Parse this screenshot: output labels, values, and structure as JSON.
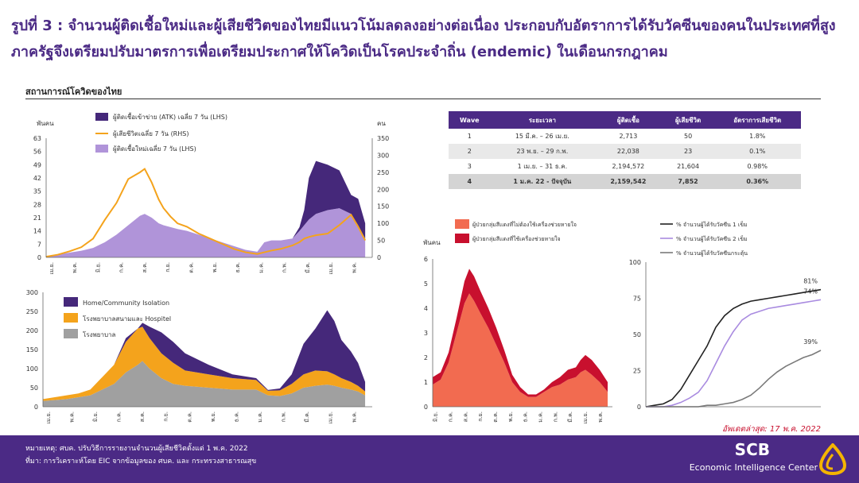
{
  "title": "รูปที่ 3 : จำนวนผู้ติดเชื้อใหม่และผู้เสียชีวิตของไทยมีแนวโน้มลดลงอย่างต่อเนื่อง ประกอบกับอัตราการได้รับวัคซีนของคนในประเทศที่สูง ภาครัฐจึงเตรียมปรับมาตรการเพื่อเตรียมประกาศให้โควิดเป็นโรคประจำถิ่น (endemic) ในเดือนกรกฎาคม",
  "section_title": "สถานการณ์โควิดของไทย",
  "update_text": "อัพเดตล่าสุด: 17 พ.ค. 2022",
  "footer": {
    "note": "หมายเหตุ: ศบค. ปรับวิธีการรายงานจำนวนผู้เสียชีวิตตั้งแต่ 1 พ.ค. 2022",
    "source": "ที่มา: การวิเคราะห์โดย EIC จากข้อมูลของ ศบค. และ กระทรวงสาธารณสุข",
    "brand": "SCB",
    "brand_sub": "Economic Intelligence Center"
  },
  "colors": {
    "purple": "#4b2a85",
    "dark_purple": "#45287a",
    "light_purple": "#b094d9",
    "orange": "#f4a31c",
    "gray": "#a0a0a0",
    "coral": "#f26b50",
    "crimson": "#c8102e",
    "lavender": "#a98be0",
    "dark_gray": "#7a7a7a"
  },
  "wave_table": {
    "headers": [
      "Wave",
      "ระยะเวลา",
      "ผู้ติดเชื้อ",
      "ผู้เสียชีวิต",
      "อัตราการเสียชีวิต"
    ],
    "rows": [
      [
        "1",
        "15 มี.ค. – 26 เม.ย.",
        "2,713",
        "50",
        "1.8%"
      ],
      [
        "2",
        "23 พ.ย. – 29 ก.พ.",
        "22,038",
        "23",
        "0.1%"
      ],
      [
        "3",
        "1 เม.ย. – 31 ธ.ค.",
        "2,194,572",
        "21,604",
        "0.98%"
      ],
      [
        "4",
        "1 ม.ค. 22 - ปัจจุบัน",
        "2,159,542",
        "7,852",
        "0.36%"
      ]
    ]
  },
  "chart_data": [
    {
      "type": "area",
      "id": "cases_deaths",
      "ylabel": "พันคน",
      "ylabel_right": "คน",
      "ylim": [
        0,
        63
      ],
      "y_ticks": [
        0,
        7,
        14,
        21,
        28,
        35,
        42,
        49,
        56,
        63
      ],
      "ylim_right": [
        0,
        350
      ],
      "y_ticks_right": [
        0,
        50,
        100,
        150,
        200,
        250,
        300,
        350
      ],
      "x_ticks": [
        "เม.ย.",
        "พ.ค.",
        "มิ.ย.",
        "ก.ค.",
        "ส.ค.",
        "ก.ย.",
        "ต.ค.",
        "พ.ย.",
        "ธ.ค.",
        "ม.ค.",
        "ก.พ.",
        "มี.ค.",
        "เม.ย.",
        "พ.ค."
      ],
      "legend": [
        "ผู้ติดเชื้อเข้าข่าย (ATK) เฉลี่ย 7 วัน (LHS)",
        "ผู้เสียชีวิตเฉลี่ย 7 วัน (RHS)",
        "ผู้ติดเชื้อใหม่เฉลี่ย 7 วัน (LHS)"
      ],
      "x": [
        0,
        0.5,
        1,
        1.5,
        2,
        2.5,
        3,
        3.5,
        4,
        4.2,
        4.5,
        4.8,
        5,
        5.3,
        5.6,
        6,
        6.5,
        7,
        7.5,
        8,
        8.5,
        9,
        9.3,
        9.6,
        10,
        10.5,
        10.8,
        11,
        11.2,
        11.5,
        12,
        12.5,
        13,
        13.3,
        13.6
      ],
      "series": [
        {
          "name": "ผู้ติดเชื้อใหม่เฉลี่ย 7 วัน (LHS)",
          "values": [
            0.5,
            1.5,
            2.5,
            3.5,
            5,
            8,
            12,
            17,
            22,
            23,
            21,
            18,
            17,
            16,
            15,
            14,
            12,
            10,
            8,
            6,
            4,
            3,
            8,
            9,
            9,
            10,
            14,
            17,
            20,
            23,
            25,
            26,
            23,
            17,
            10
          ]
        },
        {
          "name": "ผู้ติดเชื้อเข้าข่าย (ATK) เฉลี่ย 7 วัน (LHS)",
          "values": [
            0,
            0,
            0,
            0,
            0,
            0,
            0,
            0,
            0,
            0,
            0,
            0,
            0,
            0,
            0,
            0,
            0,
            0,
            0,
            0,
            0,
            0,
            0,
            0,
            0,
            0,
            2,
            8,
            22,
            28,
            24,
            20,
            10,
            14,
            8
          ]
        },
        {
          "name": "ผู้เสียชีวิตเฉลี่ย 7 วัน (RHS)",
          "values": [
            2,
            8,
            18,
            30,
            55,
            110,
            160,
            230,
            250,
            260,
            220,
            170,
            145,
            120,
            100,
            90,
            70,
            55,
            40,
            25,
            15,
            10,
            15,
            20,
            25,
            35,
            45,
            55,
            60,
            65,
            70,
            95,
            125,
            90,
            50
          ]
        }
      ]
    },
    {
      "type": "area",
      "id": "isolation",
      "ylim": [
        0,
        300
      ],
      "y_ticks": [
        0,
        50,
        100,
        150,
        200,
        250,
        300
      ],
      "x_ticks": [
        "เม.ย.",
        "พ.ค.",
        "มิ.ย.",
        "ก.ค.",
        "ส.ค.",
        "ก.ย.",
        "ต.ค.",
        "พ.ย.",
        "ธ.ค.",
        "ม.ค.",
        "ก.พ.",
        "มี.ค.",
        "เม.ย.",
        "พ.ค."
      ],
      "legend": [
        "Home/Community Isolation",
        "โรงพยาบาลสนามและ Hospitel",
        "โรงพยาบาล"
      ],
      "x": [
        0,
        1,
        1.5,
        2,
        3,
        3.5,
        4,
        4.2,
        4.5,
        5,
        5.5,
        6,
        7,
        8,
        9,
        9.5,
        10,
        10.5,
        11,
        11.5,
        12,
        12.3,
        12.6,
        13,
        13.3,
        13.6
      ],
      "series": [
        {
          "name": "โรงพยาบาล",
          "values": [
            15,
            20,
            25,
            30,
            60,
            90,
            110,
            120,
            100,
            75,
            60,
            55,
            50,
            45,
            45,
            30,
            28,
            35,
            50,
            55,
            58,
            55,
            50,
            45,
            40,
            30
          ]
        },
        {
          "name": "โรงพยาบาลสนามและ Hospitel",
          "values": [
            5,
            10,
            10,
            15,
            50,
            80,
            95,
            90,
            80,
            65,
            55,
            40,
            35,
            30,
            25,
            12,
            15,
            25,
            35,
            40,
            35,
            30,
            25,
            20,
            15,
            10
          ]
        },
        {
          "name": "Home/Community Isolation",
          "values": [
            0,
            0,
            0,
            0,
            0,
            10,
            0,
            10,
            30,
            55,
            55,
            45,
            25,
            10,
            5,
            2,
            5,
            25,
            80,
            110,
            160,
            140,
            100,
            80,
            60,
            25
          ]
        }
      ]
    },
    {
      "type": "area",
      "id": "serious_patients",
      "ylabel": "พันคน",
      "ylim": [
        0,
        6
      ],
      "y_ticks": [
        0,
        1,
        2,
        3,
        4,
        5,
        6
      ],
      "x_ticks": [
        "มิ.ย.",
        "ก.ค.",
        "ส.ค.",
        "ก.ย.",
        "ต.ค.",
        "พ.ย.",
        "ธ.ค.",
        "ม.ค.",
        "ก.พ.",
        "มี.ค.",
        "เม.ย.",
        "พ.ค."
      ],
      "legend": [
        "ผู้ป่วยกลุ่มสีแดงที่ไม่ต้องใช้เครื่องช่วยหายใจ",
        "ผู้ป่วยกลุ่มสีแดงที่ใช้เครื่องช่วยหายใจ"
      ],
      "x": [
        0,
        0.5,
        1,
        1.5,
        2,
        2.3,
        2.6,
        3,
        3.5,
        4,
        4.5,
        5,
        5.5,
        6,
        6.5,
        7,
        7.5,
        8,
        8.5,
        9,
        9.3,
        9.6,
        10,
        10.5,
        11
      ],
      "series": [
        {
          "name": "ผู้ป่วยกลุ่มสีแดงที่ไม่ต้องใช้เครื่องช่วยหายใจ",
          "values": [
            0.9,
            1.1,
            1.8,
            3.0,
            4.2,
            4.6,
            4.3,
            3.8,
            3.2,
            2.5,
            1.8,
            1.0,
            0.6,
            0.4,
            0.4,
            0.6,
            0.8,
            0.9,
            1.1,
            1.2,
            1.4,
            1.5,
            1.3,
            1.0,
            0.6
          ]
        },
        {
          "name": "ผู้ป่วยกลุ่มสีแดงที่ใช้เครื่องช่วยหายใจ",
          "values": [
            0.3,
            0.3,
            0.4,
            0.6,
            0.9,
            1.0,
            1.0,
            0.9,
            0.8,
            0.7,
            0.5,
            0.3,
            0.2,
            0.1,
            0.1,
            0.1,
            0.2,
            0.3,
            0.4,
            0.4,
            0.5,
            0.6,
            0.6,
            0.5,
            0.4
          ]
        }
      ]
    },
    {
      "type": "line",
      "id": "vaccination",
      "ylim": [
        0,
        100
      ],
      "y_ticks": [
        0,
        25,
        50,
        75,
        100
      ],
      "legend": [
        "% จำนวนผู้ได้รับวัคซีน 1 เข็ม",
        "% จำนวนผู้ได้รับวัคซีน 2 เข็ม",
        "% จำนวนผู้ได้รับวัคซีนกระตุ้น"
      ],
      "x": [
        0,
        1,
        2,
        3,
        4,
        5,
        6,
        7,
        8,
        9,
        10,
        11,
        12,
        13,
        14,
        15,
        16,
        17,
        18,
        19,
        20
      ],
      "series": [
        {
          "name": "% จำนวนผู้ได้รับวัคซีน 1 เข็ม",
          "values": [
            0,
            1,
            2,
            5,
            12,
            22,
            32,
            42,
            55,
            63,
            68,
            71,
            73,
            74,
            75,
            76,
            77,
            78,
            79,
            80,
            81
          ],
          "end_label": "81%"
        },
        {
          "name": "% จำนวนผู้ได้รับวัคซีน 2 เข็ม",
          "values": [
            0,
            0,
            0,
            1,
            3,
            6,
            10,
            18,
            30,
            42,
            52,
            60,
            64,
            66,
            68,
            69,
            70,
            71,
            72,
            73,
            74
          ],
          "end_label": "74%"
        },
        {
          "name": "% จำนวนผู้ได้รับวัคซีนกระตุ้น",
          "values": [
            0,
            0,
            0,
            0,
            0,
            0,
            0,
            1,
            1,
            2,
            3,
            5,
            8,
            13,
            19,
            24,
            28,
            31,
            34,
            36,
            39
          ],
          "end_label": "39%"
        }
      ]
    }
  ]
}
